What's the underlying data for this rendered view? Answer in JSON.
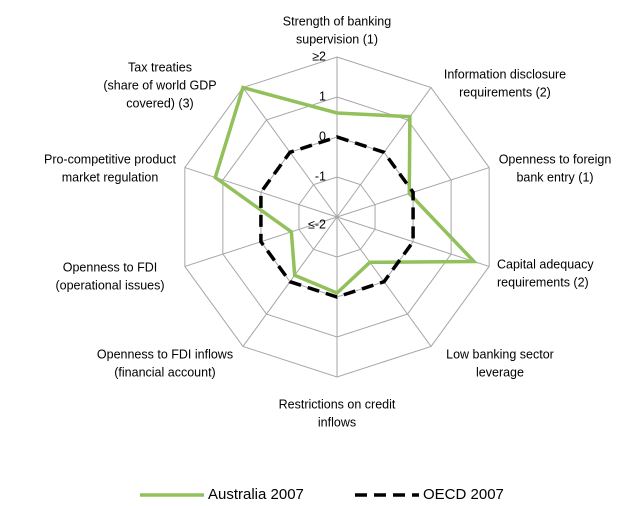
{
  "chart_data": {
    "type": "radar",
    "categories": [
      [
        "Strength of banking",
        "supervision (1)"
      ],
      [
        "Information disclosure",
        "requirements (2)"
      ],
      [
        "Openness to foreign",
        "bank entry (1)"
      ],
      [
        "Capital adequacy",
        "requirements (2)"
      ],
      [
        "Low banking sector",
        "leverage"
      ],
      [
        "Restrictions on credit",
        "inflows"
      ],
      [
        "Openness to FDI inflows",
        "(financial account)"
      ],
      [
        "Openness to FDI",
        "(operational issues)"
      ],
      [
        "Pro-competitive product",
        "market regulation"
      ],
      [
        "Tax treaties",
        "(share of world GDP",
        "covered) (3)"
      ]
    ],
    "series": [
      {
        "name": "Australia 2007",
        "color": "#92c05a",
        "dashed": false,
        "values": [
          0.6,
          1.1,
          -0.1,
          1.6,
          -0.6,
          -0.1,
          -0.2,
          -0.8,
          1.2,
          2.0
        ]
      },
      {
        "name": "OECD 2007",
        "color": "#000000",
        "dashed": true,
        "values": [
          0,
          0,
          0,
          0,
          0,
          0,
          0,
          0,
          0,
          0
        ]
      }
    ],
    "ylim": [
      -2,
      2
    ],
    "yticks": [
      {
        "value": -2,
        "label": "≤-2"
      },
      -1,
      0,
      1,
      {
        "value": 2,
        "label": "≥2"
      }
    ],
    "grid": true,
    "legend": "bottom"
  }
}
